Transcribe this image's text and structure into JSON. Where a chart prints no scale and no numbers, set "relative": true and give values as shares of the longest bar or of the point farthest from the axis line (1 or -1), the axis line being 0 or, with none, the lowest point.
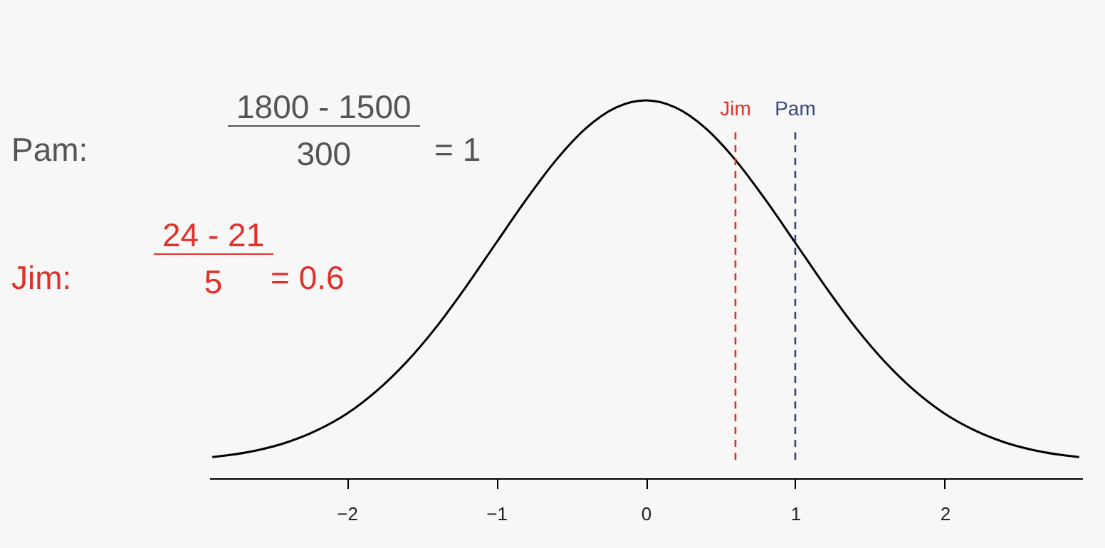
{
  "chart_data": {
    "type": "line",
    "relative": true,
    "x": [
      -2.9,
      -2.8,
      -2.6,
      -2.4,
      -2.2,
      -2.0,
      -1.8,
      -1.6,
      -1.4,
      -1.2,
      -1.0,
      -0.8,
      -0.6,
      -0.4,
      -0.2,
      0,
      0.2,
      0.4,
      0.6,
      0.8,
      1.0,
      1.2,
      1.4,
      1.6,
      1.8,
      2.0,
      2.2,
      2.4,
      2.6,
      2.8,
      2.9
    ],
    "series": [
      {
        "color": "#000000",
        "values": [
          0.015,
          0.02,
          0.034,
          0.056,
          0.089,
          0.135,
          0.198,
          0.278,
          0.375,
          0.487,
          0.607,
          0.726,
          0.835,
          0.923,
          0.98,
          1,
          0.98,
          0.923,
          0.835,
          0.726,
          0.607,
          0.487,
          0.375,
          0.278,
          0.198,
          0.135,
          0.089,
          0.056,
          0.034,
          0.02,
          0.015
        ]
      }
    ],
    "xlim": [
      -2.92,
      2.92
    ],
    "xticks": [
      {
        "value": -2,
        "label": "−2"
      },
      {
        "value": -1,
        "label": "−1"
      },
      0,
      1,
      2
    ],
    "grid": false,
    "marker": "none",
    "line_style": "solid",
    "ref_lines": [
      {
        "axis": "x",
        "value": 0.6,
        "label": "Jim",
        "color": "#e0302a",
        "line_style": "dashed"
      },
      {
        "axis": "x",
        "value": 1,
        "label": "Pam",
        "color": "#34467e",
        "line_style": "dashed"
      }
    ],
    "annotations": [
      "Pam:",
      "1800 - 1500",
      "300",
      "= 1",
      "Jim:",
      "24 - 21",
      "5",
      "= 0.6"
    ]
  }
}
